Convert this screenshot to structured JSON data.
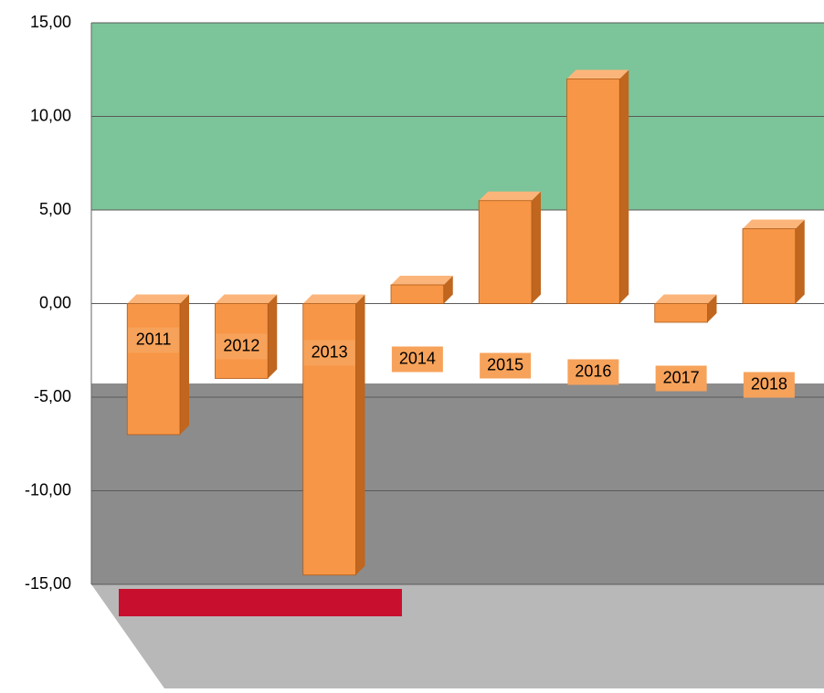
{
  "chart_data": {
    "type": "bar",
    "categories": [
      "2011",
      "2012",
      "2013",
      "2014",
      "2015",
      "2016",
      "2017",
      "2018"
    ],
    "values": [
      -7,
      -4,
      -14.5,
      1,
      5.5,
      12,
      -1,
      4
    ],
    "color": "#f79646",
    "ylim": [
      -15,
      15
    ],
    "yticks": [
      {
        "value": 15,
        "label": "15,00"
      },
      {
        "value": 10,
        "label": "10,00"
      },
      {
        "value": 5,
        "label": "5,00"
      },
      {
        "value": 0,
        "label": "0,00"
      },
      {
        "value": -5,
        "label": "-5,00"
      },
      {
        "value": -10,
        "label": "-10,00"
      },
      {
        "value": -15,
        "label": "-15,00"
      }
    ],
    "grid": true
  }
}
